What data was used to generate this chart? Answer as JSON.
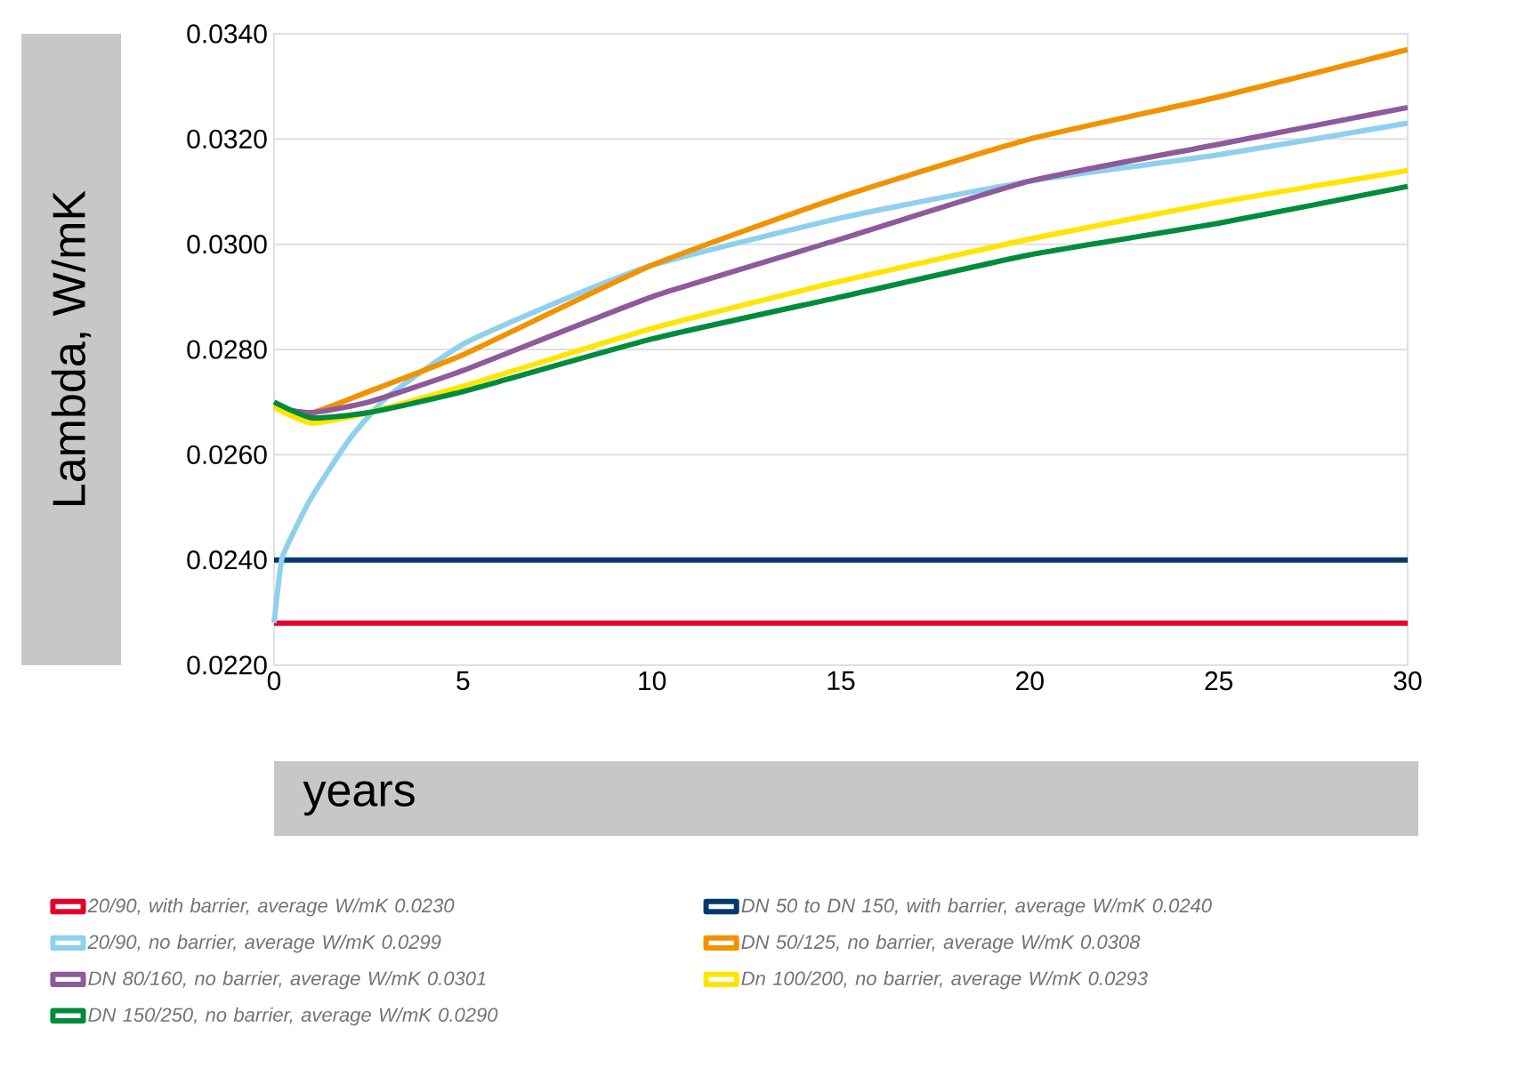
{
  "chart_data": {
    "type": "line",
    "xlabel": "years",
    "ylabel": "Lambda, W/mK",
    "x": [
      0,
      1,
      2.5,
      5,
      10,
      15,
      20,
      25,
      30
    ],
    "xlim": [
      0,
      30
    ],
    "xticks": [
      0,
      5,
      10,
      15,
      20,
      25,
      30
    ],
    "ylim": [
      0.022,
      0.034
    ],
    "yticks": [
      {
        "value": 0.022,
        "label": "0.0220"
      },
      {
        "value": 0.024,
        "label": "0.0240"
      },
      {
        "value": 0.026,
        "label": "0.0260"
      },
      {
        "value": 0.028,
        "label": "0.0280"
      },
      {
        "value": 0.03,
        "label": "0.0300"
      },
      {
        "value": 0.032,
        "label": "0.0320"
      },
      {
        "value": 0.034,
        "label": "0.0340"
      }
    ],
    "grid": "y",
    "legend": "bottom",
    "series": [
      {
        "name": "20/90, with barrier, average W/mK 0.0230",
        "color": "#e4002b",
        "x": [
          0,
          30
        ],
        "values": [
          0.0228,
          0.0228
        ]
      },
      {
        "name": "DN 50 to DN 150, with barrier, average W/mK 0.0240",
        "color": "#003a6c",
        "x": [
          0,
          30
        ],
        "values": [
          0.024,
          0.024
        ]
      },
      {
        "name": "20/90, no barrier, average W/mK 0.0299",
        "color": "#8fd0ef",
        "x": [
          0,
          0.2,
          0.5,
          1,
          2,
          3,
          5,
          7.5,
          10,
          15,
          20,
          25,
          30
        ],
        "values": [
          0.0228,
          0.024,
          0.0245,
          0.0252,
          0.0263,
          0.0271,
          0.0281,
          0.0289,
          0.0296,
          0.0305,
          0.0312,
          0.0317,
          0.0323
        ]
      },
      {
        "name": "DN 50/125, no barrier, average W/mK 0.0308",
        "color": "#f39200",
        "values": [
          0.0269,
          0.0268,
          0.0272,
          0.0279,
          0.0296,
          0.0309,
          0.032,
          0.0328,
          0.0337
        ]
      },
      {
        "name": "DN 80/160, no barrier, average W/mK 0.0301",
        "color": "#8e5a9c",
        "values": [
          0.0269,
          0.0268,
          0.027,
          0.0276,
          0.029,
          0.0301,
          0.0312,
          0.0319,
          0.0326
        ]
      },
      {
        "name": "Dn 100/200, no barrier, average W/mK 0.0293",
        "color": "#ffe500",
        "values": [
          0.0269,
          0.0266,
          0.0268,
          0.0273,
          0.0284,
          0.0293,
          0.0301,
          0.0308,
          0.0314
        ]
      },
      {
        "name": "DN 150/250, no barrier, average W/mK 0.0290",
        "color": "#008c3c",
        "values": [
          0.027,
          0.0267,
          0.0268,
          0.0272,
          0.0282,
          0.029,
          0.0298,
          0.0304,
          0.0311
        ]
      }
    ]
  }
}
